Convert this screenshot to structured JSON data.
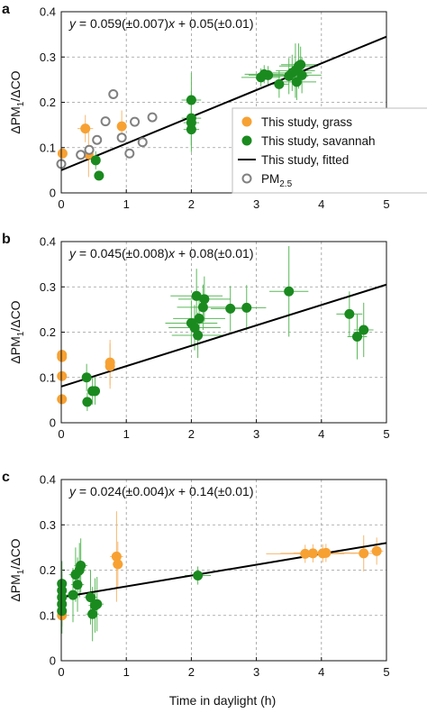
{
  "colors": {
    "grass": "#f7a133",
    "savannah": "#1a8a1f",
    "savannah_err": "#5cb85c",
    "grass_err": "#f6b870",
    "fit": "#000000",
    "pm25": "#808080"
  },
  "legend": {
    "grass": "This study, grass",
    "savannah": "This study, savannah",
    "fitted": "This study, fitted",
    "pm25_main": "PM",
    "pm25_sub": "2.5"
  },
  "axis_text": {
    "ylabel_main": "ΔPM",
    "ylabel_sub": "1",
    "ylabel_tail": "/ΔCO",
    "xlabel": "Time in daylight (h)"
  },
  "chart_data": [
    {
      "type": "scatter",
      "panel": "a",
      "title": "",
      "xlim": [
        0,
        5
      ],
      "ylim": [
        0,
        0.4
      ],
      "xticks": [
        "0",
        "1",
        "2",
        "3",
        "4",
        "5"
      ],
      "yticks": [
        "0",
        "0.1",
        "0.2",
        "0.3",
        "0.4"
      ],
      "grid": true,
      "legend_position": "right",
      "equation": {
        "slope": "0.059",
        "slope_err": "0.007",
        "intercept": "0.05",
        "intercept_err": "0.01"
      },
      "fit": {
        "slope": 0.059,
        "intercept": 0.05
      },
      "series": [
        {
          "name": "This study, grass",
          "kind": "grass",
          "points": [
            {
              "x": 0.02,
              "y": 0.087,
              "xerr": 0.0,
              "yerr": 0.0
            },
            {
              "x": 0.37,
              "y": 0.142,
              "xerr": 0.12,
              "yerr": 0.03
            },
            {
              "x": 0.42,
              "y": 0.085,
              "xerr": 0.0,
              "yerr": 0.05
            },
            {
              "x": 0.93,
              "y": 0.147,
              "xerr": 0.07,
              "yerr": 0.035
            }
          ]
        },
        {
          "name": "This study, savannah",
          "kind": "savannah",
          "points": [
            {
              "x": 0.53,
              "y": 0.072,
              "xerr": 0.05,
              "yerr": 0.02
            },
            {
              "x": 0.58,
              "y": 0.038,
              "xerr": 0.05,
              "yerr": 0.01
            },
            {
              "x": 2.0,
              "y": 0.205,
              "xerr": 0.15,
              "yerr": 0.06
            },
            {
              "x": 2.0,
              "y": 0.165,
              "xerr": 0.15,
              "yerr": 0.06
            },
            {
              "x": 2.0,
              "y": 0.155,
              "xerr": 0.12,
              "yerr": 0.05
            },
            {
              "x": 2.0,
              "y": 0.14,
              "xerr": 0.12,
              "yerr": 0.05
            },
            {
              "x": 3.07,
              "y": 0.255,
              "xerr": 0.3,
              "yerr": 0.02
            },
            {
              "x": 3.12,
              "y": 0.262,
              "xerr": 0.3,
              "yerr": 0.02
            },
            {
              "x": 3.18,
              "y": 0.26,
              "xerr": 0.3,
              "yerr": 0.02
            },
            {
              "x": 3.35,
              "y": 0.24,
              "xerr": 0.15,
              "yerr": 0.03
            },
            {
              "x": 3.5,
              "y": 0.258,
              "xerr": 0.3,
              "yerr": 0.04
            },
            {
              "x": 3.55,
              "y": 0.265,
              "xerr": 0.3,
              "yerr": 0.04
            },
            {
              "x": 3.6,
              "y": 0.27,
              "xerr": 0.3,
              "yerr": 0.06
            },
            {
              "x": 3.62,
              "y": 0.245,
              "xerr": 0.3,
              "yerr": 0.04
            },
            {
              "x": 3.65,
              "y": 0.28,
              "xerr": 0.3,
              "yerr": 0.05
            },
            {
              "x": 3.68,
              "y": 0.283,
              "xerr": 0.3,
              "yerr": 0.04
            },
            {
              "x": 3.7,
              "y": 0.26,
              "xerr": 0.3,
              "yerr": 0.04
            }
          ]
        },
        {
          "name": "PM2.5",
          "kind": "pm25",
          "points": [
            {
              "x": 0.0,
              "y": 0.064
            },
            {
              "x": 0.3,
              "y": 0.084
            },
            {
              "x": 0.43,
              "y": 0.095
            },
            {
              "x": 0.55,
              "y": 0.117
            },
            {
              "x": 0.68,
              "y": 0.158
            },
            {
              "x": 0.8,
              "y": 0.218
            },
            {
              "x": 0.93,
              "y": 0.122
            },
            {
              "x": 1.05,
              "y": 0.087
            },
            {
              "x": 1.13,
              "y": 0.157
            },
            {
              "x": 1.25,
              "y": 0.112
            },
            {
              "x": 1.4,
              "y": 0.167
            }
          ]
        }
      ]
    },
    {
      "type": "scatter",
      "panel": "b",
      "title": "",
      "xlim": [
        0,
        5
      ],
      "ylim": [
        0,
        0.4
      ],
      "xticks": [
        "0",
        "1",
        "2",
        "3",
        "4",
        "5"
      ],
      "yticks": [
        "0",
        "0.1",
        "0.2",
        "0.3",
        "0.4"
      ],
      "grid": true,
      "equation": {
        "slope": "0.045",
        "slope_err": "0.008",
        "intercept": "0.08",
        "intercept_err": "0.01"
      },
      "fit": {
        "slope": 0.045,
        "intercept": 0.08
      },
      "series": [
        {
          "name": "This study, grass",
          "kind": "grass",
          "points": [
            {
              "x": 0.01,
              "y": 0.15,
              "xerr": 0.0,
              "yerr": 0.01
            },
            {
              "x": 0.01,
              "y": 0.145,
              "xerr": 0.0,
              "yerr": 0.01
            },
            {
              "x": 0.01,
              "y": 0.103,
              "xerr": 0.0,
              "yerr": 0.01
            },
            {
              "x": 0.01,
              "y": 0.052,
              "xerr": 0.0,
              "yerr": 0.01
            },
            {
              "x": 0.75,
              "y": 0.133,
              "xerr": 0.06,
              "yerr": 0.05
            },
            {
              "x": 0.75,
              "y": 0.125,
              "xerr": 0.06,
              "yerr": 0.05
            }
          ]
        },
        {
          "name": "This study, savannah",
          "kind": "savannah",
          "points": [
            {
              "x": 0.39,
              "y": 0.1,
              "xerr": 0.05,
              "yerr": 0.03
            },
            {
              "x": 0.4,
              "y": 0.046,
              "xerr": 0.05,
              "yerr": 0.02
            },
            {
              "x": 0.48,
              "y": 0.07,
              "xerr": 0.05,
              "yerr": 0.03
            },
            {
              "x": 0.52,
              "y": 0.07,
              "xerr": 0.05,
              "yerr": 0.03
            },
            {
              "x": 2.0,
              "y": 0.22,
              "xerr": 0.4,
              "yerr": 0.05
            },
            {
              "x": 2.05,
              "y": 0.21,
              "xerr": 0.4,
              "yerr": 0.05
            },
            {
              "x": 2.08,
              "y": 0.28,
              "xerr": 0.4,
              "yerr": 0.06
            },
            {
              "x": 2.1,
              "y": 0.193,
              "xerr": 0.4,
              "yerr": 0.05
            },
            {
              "x": 2.12,
              "y": 0.23,
              "xerr": 0.4,
              "yerr": 0.05
            },
            {
              "x": 2.18,
              "y": 0.255,
              "xerr": 0.4,
              "yerr": 0.05
            },
            {
              "x": 2.2,
              "y": 0.273,
              "xerr": 0.4,
              "yerr": 0.05
            },
            {
              "x": 2.6,
              "y": 0.252,
              "xerr": 0.3,
              "yerr": 0.05
            },
            {
              "x": 2.85,
              "y": 0.254,
              "xerr": 0.3,
              "yerr": 0.05
            },
            {
              "x": 3.5,
              "y": 0.29,
              "xerr": 0.3,
              "yerr": 0.1
            },
            {
              "x": 4.43,
              "y": 0.24,
              "xerr": 0.2,
              "yerr": 0.05
            },
            {
              "x": 4.55,
              "y": 0.19,
              "xerr": 0.15,
              "yerr": 0.05
            },
            {
              "x": 4.65,
              "y": 0.205,
              "xerr": 0.15,
              "yerr": 0.06
            }
          ]
        }
      ]
    },
    {
      "type": "scatter",
      "panel": "c",
      "title": "",
      "xlim": [
        0,
        5
      ],
      "ylim": [
        0,
        0.4
      ],
      "xticks": [
        "0",
        "1",
        "2",
        "3",
        "4",
        "5"
      ],
      "yticks": [
        "0",
        "0.1",
        "0.2",
        "0.3",
        "0.4"
      ],
      "grid": true,
      "equation": {
        "slope": "0.024",
        "slope_err": "0.004",
        "intercept": "0.14",
        "intercept_err": "0.01"
      },
      "fit": {
        "slope": 0.024,
        "intercept": 0.14
      },
      "series": [
        {
          "name": "This study, grass",
          "kind": "grass",
          "points": [
            {
              "x": 0.01,
              "y": 0.1,
              "xerr": 0.0,
              "yerr": 0.02
            },
            {
              "x": 0.85,
              "y": 0.23,
              "xerr": 0.1,
              "yerr": 0.1
            },
            {
              "x": 0.87,
              "y": 0.213,
              "xerr": 0.08,
              "yerr": 0.05
            },
            {
              "x": 3.75,
              "y": 0.236,
              "xerr": 0.6,
              "yerr": 0.02
            },
            {
              "x": 3.87,
              "y": 0.237,
              "xerr": 0.5,
              "yerr": 0.02
            },
            {
              "x": 4.02,
              "y": 0.237,
              "xerr": 0.5,
              "yerr": 0.02
            },
            {
              "x": 4.07,
              "y": 0.238,
              "xerr": 0.5,
              "yerr": 0.02
            },
            {
              "x": 4.65,
              "y": 0.237,
              "xerr": 0.2,
              "yerr": 0.04
            },
            {
              "x": 4.85,
              "y": 0.242,
              "xerr": 0.1,
              "yerr": 0.03
            }
          ]
        },
        {
          "name": "This study, savannah",
          "kind": "savannah",
          "points": [
            {
              "x": 0.01,
              "y": 0.17,
              "xerr": 0.05,
              "yerr": 0.05
            },
            {
              "x": 0.01,
              "y": 0.155,
              "xerr": 0.05,
              "yerr": 0.05
            },
            {
              "x": 0.01,
              "y": 0.14,
              "xerr": 0.05,
              "yerr": 0.05
            },
            {
              "x": 0.01,
              "y": 0.125,
              "xerr": 0.05,
              "yerr": 0.05
            },
            {
              "x": 0.01,
              "y": 0.11,
              "xerr": 0.05,
              "yerr": 0.05
            },
            {
              "x": 0.18,
              "y": 0.145,
              "xerr": 0.1,
              "yerr": 0.06
            },
            {
              "x": 0.22,
              "y": 0.19,
              "xerr": 0.1,
              "yerr": 0.06
            },
            {
              "x": 0.25,
              "y": 0.168,
              "xerr": 0.1,
              "yerr": 0.06
            },
            {
              "x": 0.28,
              "y": 0.2,
              "xerr": 0.1,
              "yerr": 0.06
            },
            {
              "x": 0.3,
              "y": 0.21,
              "xerr": 0.1,
              "yerr": 0.06
            },
            {
              "x": 0.45,
              "y": 0.14,
              "xerr": 0.1,
              "yerr": 0.06
            },
            {
              "x": 0.48,
              "y": 0.103,
              "xerr": 0.1,
              "yerr": 0.06
            },
            {
              "x": 0.52,
              "y": 0.122,
              "xerr": 0.1,
              "yerr": 0.06
            },
            {
              "x": 0.55,
              "y": 0.125,
              "xerr": 0.1,
              "yerr": 0.06
            },
            {
              "x": 2.1,
              "y": 0.188,
              "xerr": 0.2,
              "yerr": 0.02
            }
          ]
        }
      ]
    }
  ]
}
